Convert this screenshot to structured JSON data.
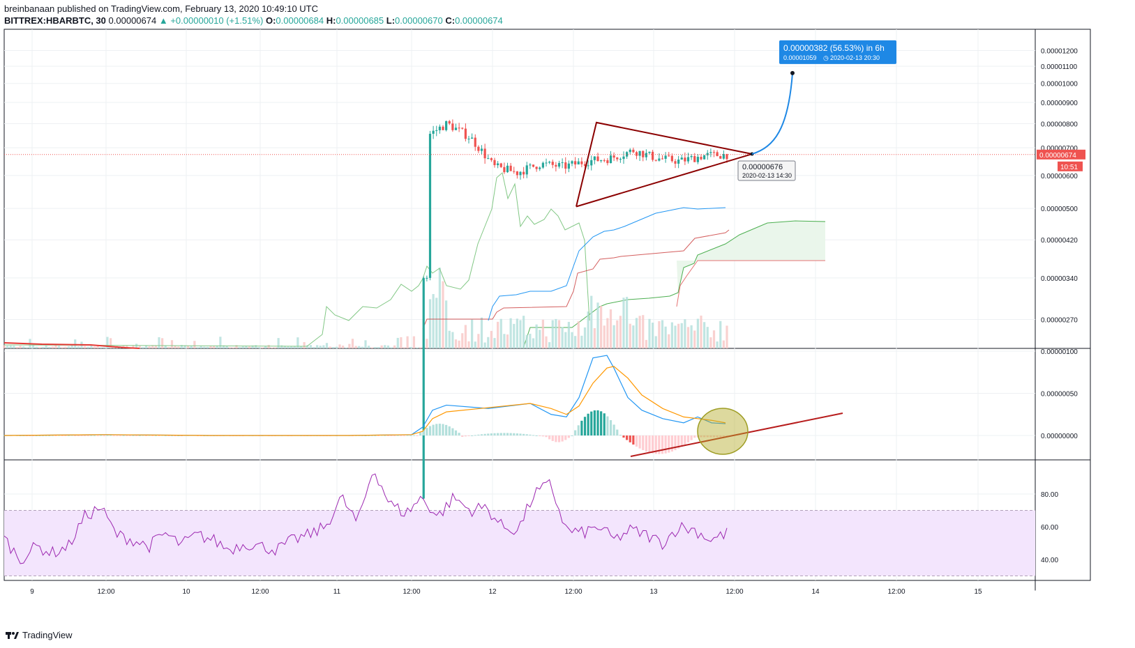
{
  "header": {
    "line1": "breinbanaan published on TradingView.com, February 13, 2020 10:49:10 UTC",
    "symbol": "BITTREX:HBARBTC, 30",
    "price": "0.00000674",
    "change": "+0.00000010 (+1.51%)",
    "o_label": "O:",
    "o": "0.00000684",
    "h_label": "H:",
    "h": "0.00000685",
    "l_label": "L:",
    "l": "0.00000670",
    "c_label": "C:",
    "c": "0.00000674"
  },
  "footer": {
    "brand": "TradingView"
  },
  "colors": {
    "up": "#26a69a",
    "down": "#ef5350",
    "blue": "#2196f3",
    "orange": "#ff9800",
    "green_line": "#81c784",
    "dark_red": "#8b0000",
    "rsi": "#9c27b0",
    "rsi_band": "#f3e5fd"
  },
  "chart_data": [
    {
      "type": "candlestick",
      "title": "BITTREX:HBARBTC, 30",
      "x_tick_labels": [
        "9",
        "12:00",
        "10",
        "12:00",
        "11",
        "12:00",
        "12",
        "12:00",
        "13",
        "12:00",
        "14",
        "12:00",
        "15"
      ],
      "y_tick_labels": [
        "0.00001200",
        "0.00001100",
        "0.00001000",
        "0.00000900",
        "0.00000800",
        "0.00000700",
        "0.00000600",
        "0.00000500",
        "0.00000420",
        "0.00000340",
        "0.00000270",
        "0.00000100"
      ],
      "yscale": "log",
      "current_price_label": "0.00000674",
      "countdown_label": "10:51",
      "price_path_close": [
        1.2e-06,
        1.2e-06,
        1.1e-06,
        1e-06,
        3e-06,
        3.05e-06,
        3.1e-06,
        3.2e-06,
        3.3e-06,
        3.6e-06,
        4e-06,
        4.3e-06,
        4.6e-06,
        4.4e-06,
        4.2e-06,
        4.1e-06,
        5e-06,
        6.2e-06,
        7.4e-06,
        8e-06,
        7.4e-06,
        6.3e-06,
        6.1e-06,
        6.4e-06,
        6.3e-06,
        6.5e-06,
        6.6e-06,
        6.9e-06,
        6.6e-06,
        6.5e-06,
        6.7e-06,
        6.74e-06
      ],
      "annotations": [
        {
          "type": "projection",
          "text": "0.00000382 (56.53%) in 6h",
          "subtext": "0.00001059",
          "date": "2020-02-13  20:30",
          "value": 1.059e-05
        },
        {
          "type": "price_label",
          "text": "0.00000676",
          "date": "2020-02-13 14:30",
          "value": 6.76e-06
        },
        {
          "type": "triangle",
          "apex_high": 8.05e-06,
          "apex_low": 5.05e-06,
          "tip": 6.76e-06
        }
      ]
    },
    {
      "type": "line",
      "title": "MACD",
      "y_tick_labels": [
        "0.00000100",
        "0.00000050",
        "0.00000000"
      ],
      "series": [
        {
          "name": "",
          "color": "#2196f3",
          "values": [
            0,
            0,
            0,
            1e-08,
            1e-08,
            0,
            2e-08,
            2.8e-07,
            3.6e-07,
            3.8e-07,
            4.2e-07,
            2.8e-07,
            3.3e-07,
            9.7e-07,
            5e-07,
            2.5e-07,
            2e-07,
            1.4e-07
          ]
        },
        {
          "name": "",
          "color": "#ff9800",
          "values": [
            0,
            0,
            0,
            1e-08,
            1e-08,
            0,
            2e-08,
            2e-07,
            3.2e-07,
            3.7e-07,
            4e-07,
            3.2e-07,
            3e-07,
            8.2e-07,
            5.8e-07,
            3.2e-07,
            2.2e-07,
            1.5e-07
          ]
        }
      ]
    },
    {
      "type": "line",
      "title": "RSI",
      "y_tick_labels": [
        "80.00",
        "60.00",
        "40.00"
      ],
      "band": [
        30,
        70
      ],
      "series": [
        {
          "name": "",
          "color": "#9c27b0",
          "values": [
            53,
            40,
            48,
            44,
            48,
            66,
            72,
            55,
            52,
            48,
            56,
            49,
            55,
            52,
            46,
            50,
            48,
            46,
            52,
            55,
            60,
            78,
            62,
            96,
            74,
            68,
            78,
            66,
            78,
            70,
            72,
            60,
            58,
            80,
            86,
            58,
            56,
            60,
            52,
            58,
            55,
            50,
            60,
            58,
            52,
            56
          ]
        }
      ]
    }
  ]
}
